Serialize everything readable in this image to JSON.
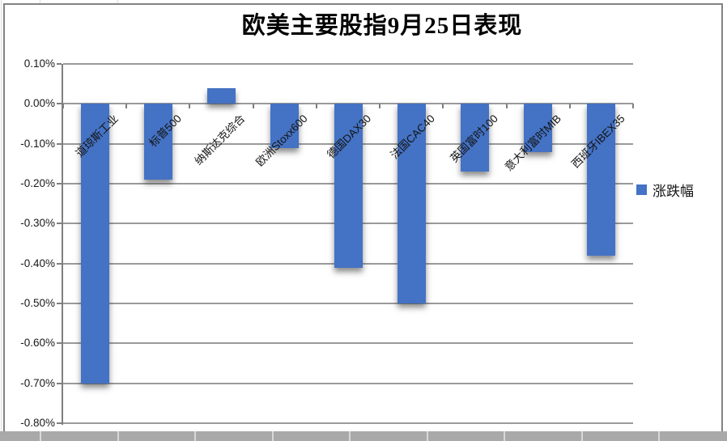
{
  "title": "欧美主要股指9月25日表现",
  "legend": {
    "label": "涨跌幅"
  },
  "colors": {
    "bar": "#4472C4",
    "gridline": "#9a9a9a",
    "axis": "#7f7f7f",
    "border": "#838383",
    "band": "#a9a9a9"
  },
  "chart_data": {
    "type": "bar",
    "title": "欧美主要股指9月25日表现",
    "categories": [
      "道琼斯工业",
      "标普500",
      "纳斯达克综合",
      "欧洲Stoxx600",
      "德国DAX30",
      "法国CAC40",
      "英国富时100",
      "意大利富时MIB",
      "西班牙IBEX35"
    ],
    "series": [
      {
        "name": "涨跌幅",
        "values": [
          -0.7,
          -0.19,
          0.04,
          -0.11,
          -0.41,
          -0.5,
          -0.17,
          -0.12,
          -0.38
        ]
      }
    ],
    "unit": "%",
    "ylim": [
      -0.8,
      0.1
    ],
    "y_ticks": [
      "0.10%",
      "0.00%",
      "-0.10%",
      "-0.20%",
      "-0.30%",
      "-0.40%",
      "-0.50%",
      "-0.60%",
      "-0.70%",
      "-0.80%"
    ],
    "grid": true,
    "legend_position": "right",
    "category_label_rotation_deg": 45
  }
}
